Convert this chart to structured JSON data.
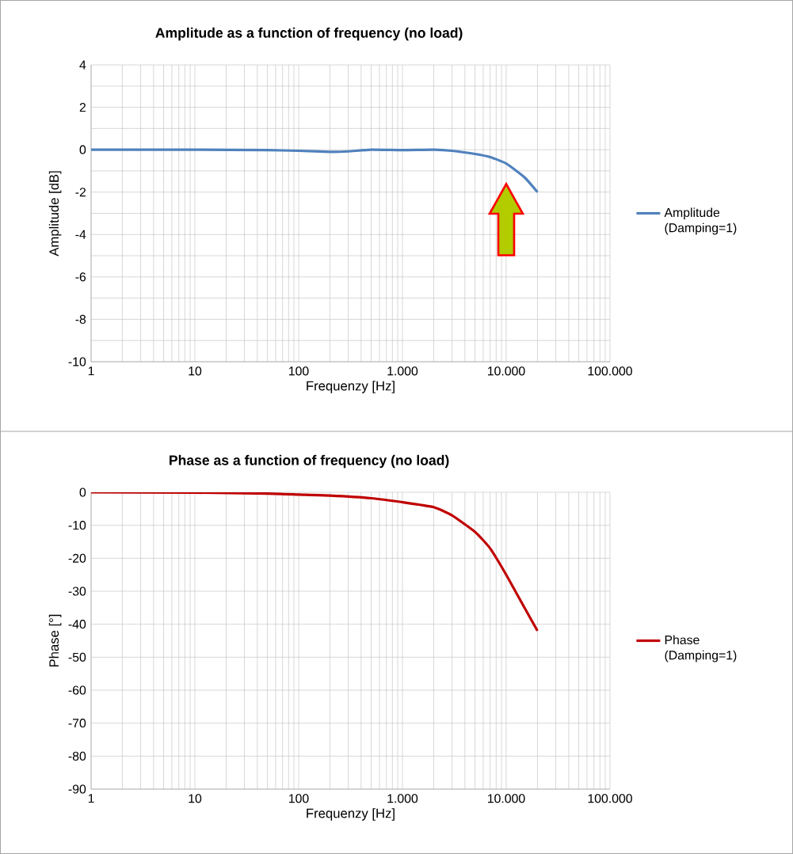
{
  "chart_data": [
    {
      "type": "line",
      "title": "Amplitude as a function of frequency (no load)",
      "xlabel": "Frequenzy [Hz]",
      "ylabel": "Amplitude [dB]",
      "log": "x",
      "grid": true,
      "legend": "right",
      "marker": "none",
      "line_style": "solid",
      "xlim": [
        1,
        100000
      ],
      "ylim": [
        -10,
        4
      ],
      "xticks": [
        1,
        10,
        100,
        {
          "value": 1000,
          "label": "1.000"
        },
        {
          "value": 10000,
          "label": "10.000"
        },
        {
          "value": 100000,
          "label": "100.000"
        }
      ],
      "yticks": [
        -10,
        {
          "value": -9,
          "label": null
        },
        -8,
        {
          "value": -7,
          "label": null
        },
        -6,
        {
          "value": -5,
          "label": null
        },
        -4,
        {
          "value": -3,
          "label": null
        },
        -2,
        {
          "value": -1,
          "label": null
        },
        0,
        {
          "value": 1,
          "label": null
        },
        2,
        {
          "value": 3,
          "label": null
        },
        4
      ],
      "series": [
        {
          "name": "Amplitude (Damping=1)",
          "color": "#4f81bd",
          "x": [
            1,
            10,
            50,
            100,
            200,
            300,
            500,
            1000,
            2000,
            3000,
            5000,
            7000,
            10000,
            15000,
            20000
          ],
          "values": [
            0,
            0,
            -0.02,
            -0.05,
            -0.1,
            -0.08,
            0,
            -0.02,
            0,
            -0.05,
            -0.2,
            -0.35,
            -0.65,
            -1.3,
            -2.0
          ]
        }
      ]
    },
    {
      "type": "line",
      "title": "Phase as a function of frequency (no load)",
      "xlabel": "Frequenzy [Hz]",
      "ylabel": "Phase [°]",
      "log": "x",
      "grid": true,
      "legend": "right",
      "marker": "none",
      "line_style": "solid",
      "xlim": [
        1,
        100000
      ],
      "ylim": [
        -90,
        0
      ],
      "xticks": [
        1,
        10,
        100,
        {
          "value": 1000,
          "label": "1.000"
        },
        {
          "value": 10000,
          "label": "10.000"
        },
        {
          "value": 100000,
          "label": "100.000"
        }
      ],
      "yticks": [
        -90,
        -80,
        -70,
        -60,
        -50,
        -40,
        -30,
        -20,
        -10,
        0
      ],
      "series": [
        {
          "name": "Phase (Damping=1)",
          "color": "#c00000",
          "x": [
            1,
            10,
            50,
            100,
            200,
            500,
            1000,
            2000,
            3000,
            5000,
            7000,
            10000,
            15000,
            20000
          ],
          "values": [
            0,
            -0.1,
            -0.4,
            -0.7,
            -1,
            -1.8,
            -3,
            -4.5,
            -7,
            -12,
            -17,
            -25,
            -35,
            -42
          ]
        }
      ]
    }
  ]
}
